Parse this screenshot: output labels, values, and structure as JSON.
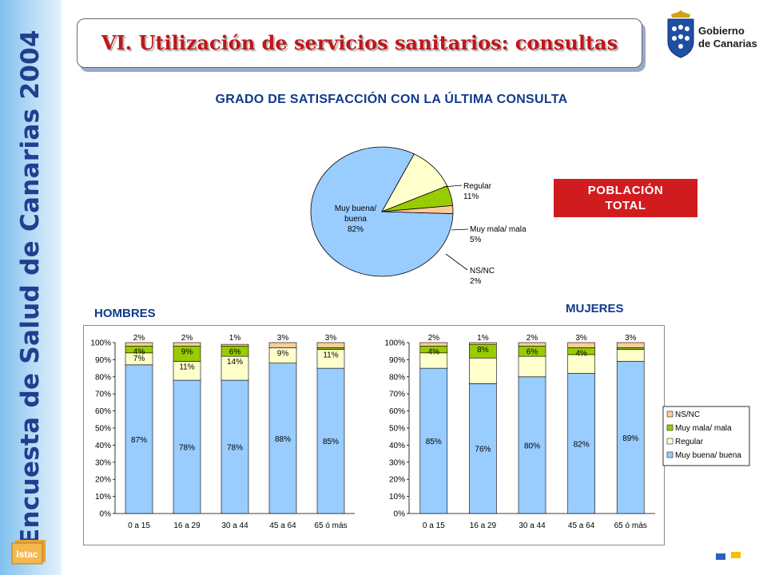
{
  "sidebar": {
    "title": "Encuesta de Salud de Canarias 2004",
    "logo_text": "Istac"
  },
  "header": {
    "title": "VI. Utilización de servicios sanitarios: consultas"
  },
  "logo": {
    "line1": "Gobierno",
    "line2": "de Canarias"
  },
  "chart_title": "GRADO DE SATISFACCIÓN CON LA ÚLTIMA CONSULTA",
  "badge": {
    "line1": "POBLACIÓN",
    "line2": "TOTAL"
  },
  "labels": {
    "hombres": "HOMBRES",
    "mujeres": "MUJERES"
  },
  "colors": {
    "muy_buena": "#99ccff",
    "regular": "#ffffcc",
    "muy_mala": "#99cc00",
    "nsnc": "#ffcc99"
  },
  "chart_data": [
    {
      "type": "pie",
      "title": "POBLACIÓN TOTAL",
      "slices": [
        {
          "name": "Muy buena/ buena",
          "label_lines": [
            "Muy buena/",
            "buena",
            "82%"
          ],
          "value": 82
        },
        {
          "name": "Regular",
          "label_lines": [
            "Regular",
            "11%"
          ],
          "value": 11
        },
        {
          "name": "Muy mala/ mala",
          "label_lines": [
            "Muy mala/ mala",
            "5%"
          ],
          "value": 5
        },
        {
          "name": "NS/NC",
          "label_lines": [
            "NS/NC",
            "2%"
          ],
          "value": 2
        }
      ]
    },
    {
      "type": "bar",
      "stacked": true,
      "title": "HOMBRES",
      "categories": [
        "0 a 15",
        "16 a 29",
        "30 a 44",
        "45 a 64",
        "65 ó más"
      ],
      "yticks": [
        "0%",
        "10%",
        "20%",
        "30%",
        "40%",
        "50%",
        "60%",
        "70%",
        "80%",
        "90%",
        "100%"
      ],
      "ylim": [
        0,
        100
      ],
      "series": [
        {
          "name": "Muy buena/ buena",
          "values": [
            87,
            78,
            78,
            88,
            85
          ],
          "labels": [
            "87%",
            "78%",
            "78%",
            "88%",
            "85%"
          ]
        },
        {
          "name": "Regular",
          "values": [
            7,
            11,
            14,
            9,
            11
          ],
          "labels": [
            "7%",
            "11%",
            "14%",
            "9%",
            "11%"
          ]
        },
        {
          "name": "Muy mala/ mala",
          "values": [
            4,
            9,
            6,
            0,
            1
          ],
          "labels": [
            "4%",
            "9%",
            "6%",
            "",
            ""
          ]
        },
        {
          "name": "NS/NC",
          "values": [
            2,
            2,
            1,
            3,
            3
          ],
          "labels": [
            "2%",
            "2%",
            "1%",
            "3%",
            "3%"
          ]
        }
      ]
    },
    {
      "type": "bar",
      "stacked": true,
      "title": "MUJERES",
      "categories": [
        "0 a 15",
        "16 a 29",
        "30 a 44",
        "45 a 64",
        "65 ó más"
      ],
      "yticks": [
        "0%",
        "10%",
        "20%",
        "30%",
        "40%",
        "50%",
        "60%",
        "70%",
        "80%",
        "90%",
        "100%"
      ],
      "ylim": [
        0,
        100
      ],
      "legend": [
        "NS/NC",
        "Muy mala/ mala",
        "Regular",
        "Muy buena/ buena"
      ],
      "series": [
        {
          "name": "Muy buena/ buena",
          "values": [
            85,
            76,
            80,
            82,
            89
          ],
          "labels": [
            "85%",
            "76%",
            "80%",
            "82%",
            "89%"
          ]
        },
        {
          "name": "Regular",
          "values": [
            9,
            15,
            12,
            11,
            7
          ],
          "labels": [
            "",
            "",
            "",
            "",
            ""
          ]
        },
        {
          "name": "Muy mala/ mala",
          "values": [
            4,
            8,
            6,
            4,
            1
          ],
          "labels": [
            "4%",
            "8%",
            "6%",
            "4%",
            ""
          ]
        },
        {
          "name": "NS/NC",
          "values": [
            2,
            1,
            2,
            3,
            3
          ],
          "labels": [
            "2%",
            "1%",
            "2%",
            "3%",
            "3%"
          ]
        }
      ]
    }
  ]
}
